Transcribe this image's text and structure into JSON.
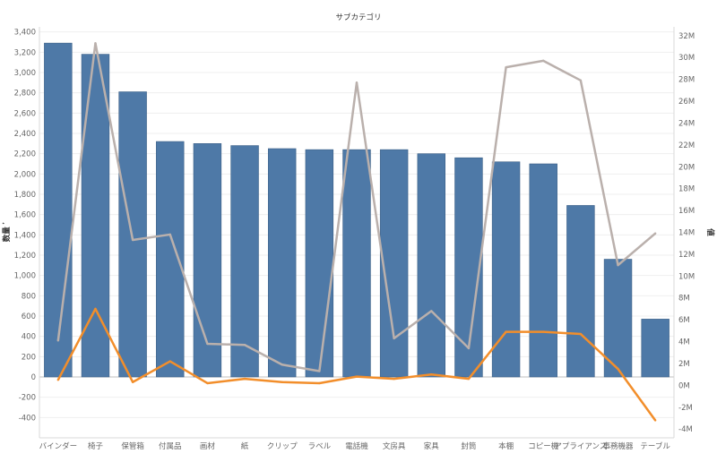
{
  "chart_data": {
    "type": "bar",
    "title": "サブカテゴリ",
    "ylabel": "数量 𝄒",
    "y2label": "値",
    "categories": [
      "バインダー",
      "椅子",
      "保管箱",
      "付属品",
      "画材",
      "紙",
      "クリップ",
      "ラベル",
      "電話機",
      "文房具",
      "家具",
      "封筒",
      "本棚",
      "コピー機",
      "アプライアンス",
      "事務機器",
      "テーブル"
    ],
    "ylim": [
      -600,
      3450
    ],
    "y_ticks": [
      "-400",
      "-200",
      "0",
      "200",
      "400",
      "600",
      "800",
      "1,000",
      "1,200",
      "1,400",
      "1,600",
      "1,800",
      "2,000",
      "2,200",
      "2,400",
      "2,600",
      "2,800",
      "3,000",
      "3,200",
      "3,400"
    ],
    "y2lim": [
      -4800000,
      32800000
    ],
    "y2_ticks": [
      "-4M",
      "-2M",
      "0M",
      "2M",
      "4M",
      "6M",
      "8M",
      "10M",
      "12M",
      "14M",
      "16M",
      "18M",
      "20M",
      "22M",
      "24M",
      "26M",
      "28M",
      "30M",
      "32M"
    ],
    "grid": true,
    "bar_color": "#4e79a7",
    "series": [
      {
        "type": "bar",
        "axis": "left",
        "color": "#4e79a7",
        "values": [
          3290,
          3180,
          2810,
          2320,
          2300,
          2280,
          2250,
          2240,
          2240,
          2240,
          2200,
          2160,
          2120,
          2100,
          1690,
          1160,
          570
        ]
      },
      {
        "type": "line",
        "axis": "right",
        "color": "#bab0ac",
        "values": [
          4100000,
          31300000,
          13300000,
          13800000,
          3800000,
          3700000,
          1900000,
          1300000,
          27700000,
          4300000,
          6800000,
          3400000,
          29100000,
          29700000,
          27900000,
          11000000,
          13900000
        ]
      },
      {
        "type": "line",
        "axis": "right",
        "color": "#f28e2b",
        "values": [
          500000,
          7000000,
          300000,
          2200000,
          200000,
          600000,
          300000,
          200000,
          800000,
          600000,
          1000000,
          600000,
          4900000,
          4900000,
          4700000,
          1500000,
          -3200000
        ]
      }
    ]
  }
}
